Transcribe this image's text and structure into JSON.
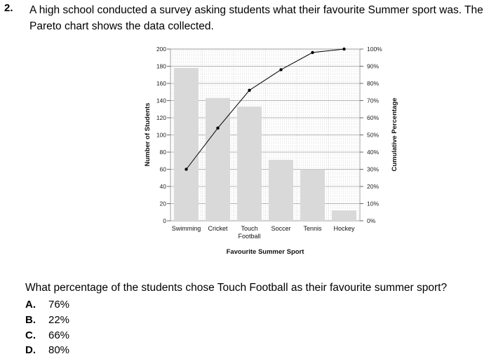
{
  "question": {
    "number": "2.",
    "text": "A high school conducted a survey asking students what their favourite Summer sport was. The Pareto chart shows the data collected.",
    "ask": "What percentage of the students chose Touch Football as their favourite summer sport?",
    "options": [
      {
        "letter": "A.",
        "text": "76%"
      },
      {
        "letter": "B.",
        "text": "22%"
      },
      {
        "letter": "C.",
        "text": "66%"
      },
      {
        "letter": "D.",
        "text": "80%"
      }
    ]
  },
  "chart_data": {
    "type": "bar",
    "title": "",
    "xlabel": "Favourite Summer Sport",
    "ylabel": "Number of Students",
    "y2label": "Cumulative Percentage",
    "categories": [
      "Swimming",
      "Cricket",
      "Touch Football",
      "Soccer",
      "Tennis",
      "Hockey"
    ],
    "category_labels": [
      [
        "Swimming"
      ],
      [
        "Cricket"
      ],
      [
        "Touch",
        "Football"
      ],
      [
        "Soccer"
      ],
      [
        "Tennis"
      ],
      [
        "Hockey"
      ]
    ],
    "series": [
      {
        "values": [
          178,
          143,
          133,
          71,
          60,
          12
        ]
      },
      {
        "values": [
          30,
          54,
          76,
          88,
          98,
          100
        ]
      }
    ],
    "ylim": [
      0,
      200
    ],
    "yticks": [
      "0",
      "20",
      "40",
      "60",
      "80",
      "100",
      "120",
      "140",
      "160",
      "180",
      "200"
    ],
    "y2lim": [
      0,
      100
    ],
    "y2ticks": [
      "0%",
      "10%",
      "20%",
      "30%",
      "40%",
      "50%",
      "60%",
      "70%",
      "80%",
      "90%",
      "100%"
    ],
    "grid": true,
    "colors": {
      "bar": "#d9d9d9",
      "line": "#000000",
      "grid": "#9a9a9a"
    }
  }
}
